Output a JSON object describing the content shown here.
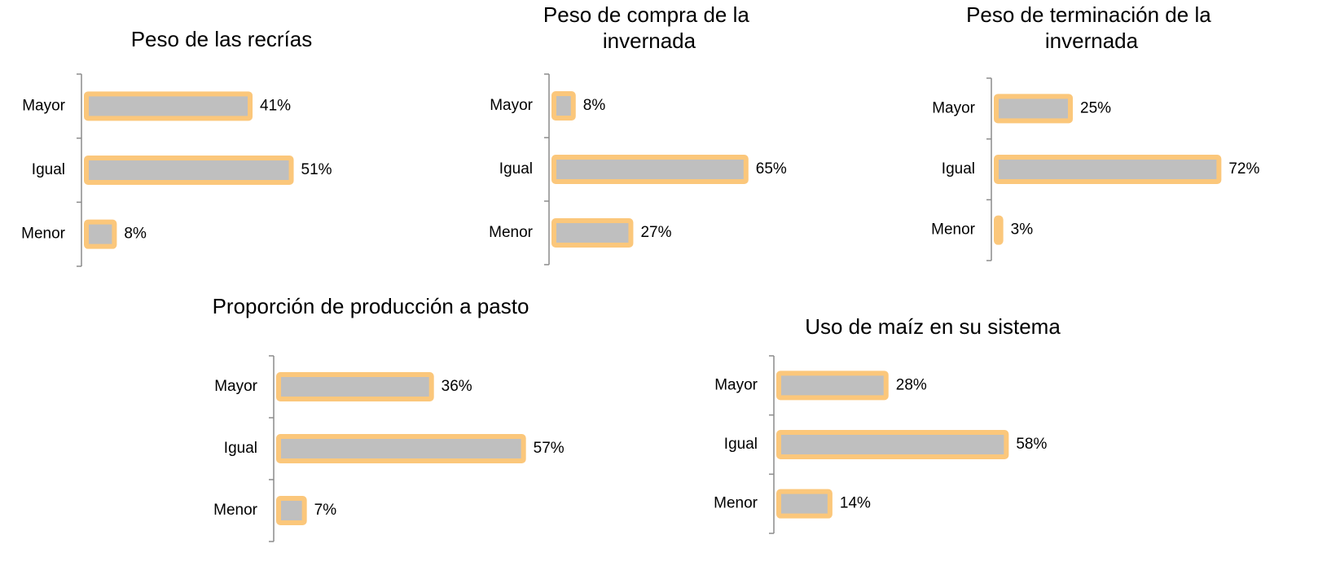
{
  "chart_data": [
    {
      "type": "barh",
      "title": "Peso de las recrías",
      "categories": [
        "Mayor",
        "Igual",
        "Menor"
      ],
      "values": [
        41,
        51,
        8
      ],
      "value_labels": [
        "41%",
        "51%",
        "8%"
      ],
      "color": "#bfbfbf",
      "edgecolor": "#fbc77b"
    },
    {
      "type": "barh",
      "title": "Peso de compra de la invernada",
      "categories": [
        "Mayor",
        "Igual",
        "Menor"
      ],
      "values": [
        8,
        65,
        27
      ],
      "value_labels": [
        "8%",
        "65%",
        "27%"
      ],
      "color": "#bfbfbf",
      "edgecolor": "#fbc77b"
    },
    {
      "type": "barh",
      "title": "Peso de terminación de la invernada",
      "categories": [
        "Mayor",
        "Igual",
        "Menor"
      ],
      "values": [
        25,
        72,
        3
      ],
      "value_labels": [
        "25%",
        "72%",
        "3%"
      ],
      "color": "#bfbfbf",
      "edgecolor": "#fbc77b"
    },
    {
      "type": "barh",
      "title": "Proporción de producción a pasto",
      "categories": [
        "Mayor",
        "Igual",
        "Menor"
      ],
      "values": [
        36,
        57,
        7
      ],
      "value_labels": [
        "36%",
        "57%",
        "7%"
      ],
      "color": "#bfbfbf",
      "edgecolor": "#fbc77b"
    },
    {
      "type": "barh",
      "title": "Uso de maíz en su sistema",
      "categories": [
        "Mayor",
        "Igual",
        "Menor"
      ],
      "values": [
        28,
        58,
        14
      ],
      "value_labels": [
        "28%",
        "58%",
        "14%"
      ],
      "color": "#bfbfbf",
      "edgecolor": "#fbc77b"
    }
  ]
}
